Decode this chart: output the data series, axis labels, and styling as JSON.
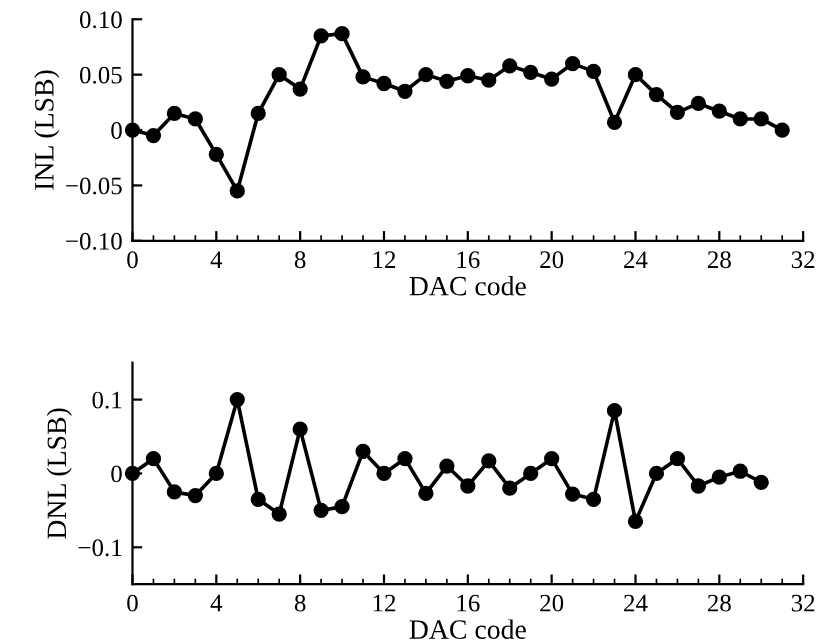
{
  "chart_data": [
    {
      "type": "line",
      "xlabel": "DAC code",
      "ylabel": "INL (LSB)",
      "marker": "circle",
      "line_style": "solid",
      "x": [
        0,
        1,
        2,
        3,
        4,
        5,
        6,
        7,
        8,
        9,
        10,
        11,
        12,
        13,
        14,
        15,
        16,
        17,
        18,
        19,
        20,
        21,
        22,
        23,
        24,
        25,
        26,
        27,
        28,
        29,
        30,
        31
      ],
      "series": [
        {
          "color": "#000000",
          "values": [
            0,
            -0.005,
            0.015,
            0.01,
            -0.022,
            -0.055,
            0.015,
            0.05,
            0.037,
            0.085,
            0.087,
            0.048,
            0.042,
            0.035,
            0.05,
            0.044,
            0.049,
            0.045,
            0.058,
            0.052,
            0.046,
            0.06,
            0.053,
            0.007,
            0.05,
            0.032,
            0.016,
            0.024,
            0.017,
            0.01,
            0.01,
            0
          ]
        }
      ],
      "xlim": [
        0,
        32
      ],
      "xticks": [
        0,
        4,
        8,
        12,
        16,
        20,
        24,
        28,
        32
      ],
      "ylim": [
        -0.1,
        0.1
      ],
      "yticks": [
        {
          "value": -0.1,
          "label": "−0.10"
        },
        {
          "value": -0.05,
          "label": "−0.05"
        },
        0,
        {
          "value": 0.05,
          "label": "0.05"
        },
        {
          "value": 0.1,
          "label": "0.10"
        }
      ]
    },
    {
      "type": "line",
      "xlabel": "DAC code",
      "ylabel": "DNL (LSB)",
      "marker": "circle",
      "line_style": "solid",
      "x": [
        0,
        1,
        2,
        3,
        4,
        5,
        6,
        7,
        8,
        9,
        10,
        11,
        12,
        13,
        14,
        15,
        16,
        17,
        18,
        19,
        20,
        21,
        22,
        23,
        24,
        25,
        26,
        27,
        28,
        29,
        30
      ],
      "series": [
        {
          "color": "#000000",
          "values": [
            0,
            0.02,
            -0.025,
            -0.03,
            0,
            0.1,
            -0.035,
            -0.055,
            0.06,
            -0.05,
            -0.045,
            0.03,
            0,
            0.02,
            -0.027,
            0.01,
            -0.017,
            0.017,
            -0.02,
            0,
            0.02,
            -0.028,
            -0.035,
            0.085,
            -0.065,
            0,
            0.02,
            -0.017,
            -0.005,
            0.003,
            -0.012
          ]
        }
      ],
      "xlim": [
        0,
        32
      ],
      "xticks": [
        0,
        4,
        8,
        12,
        16,
        20,
        24,
        28,
        32
      ],
      "ylim": [
        -0.15,
        0.15
      ],
      "yticks": [
        {
          "value": -0.1,
          "label": "−0.1"
        },
        0,
        {
          "value": 0.1,
          "label": "0.1"
        }
      ]
    }
  ]
}
